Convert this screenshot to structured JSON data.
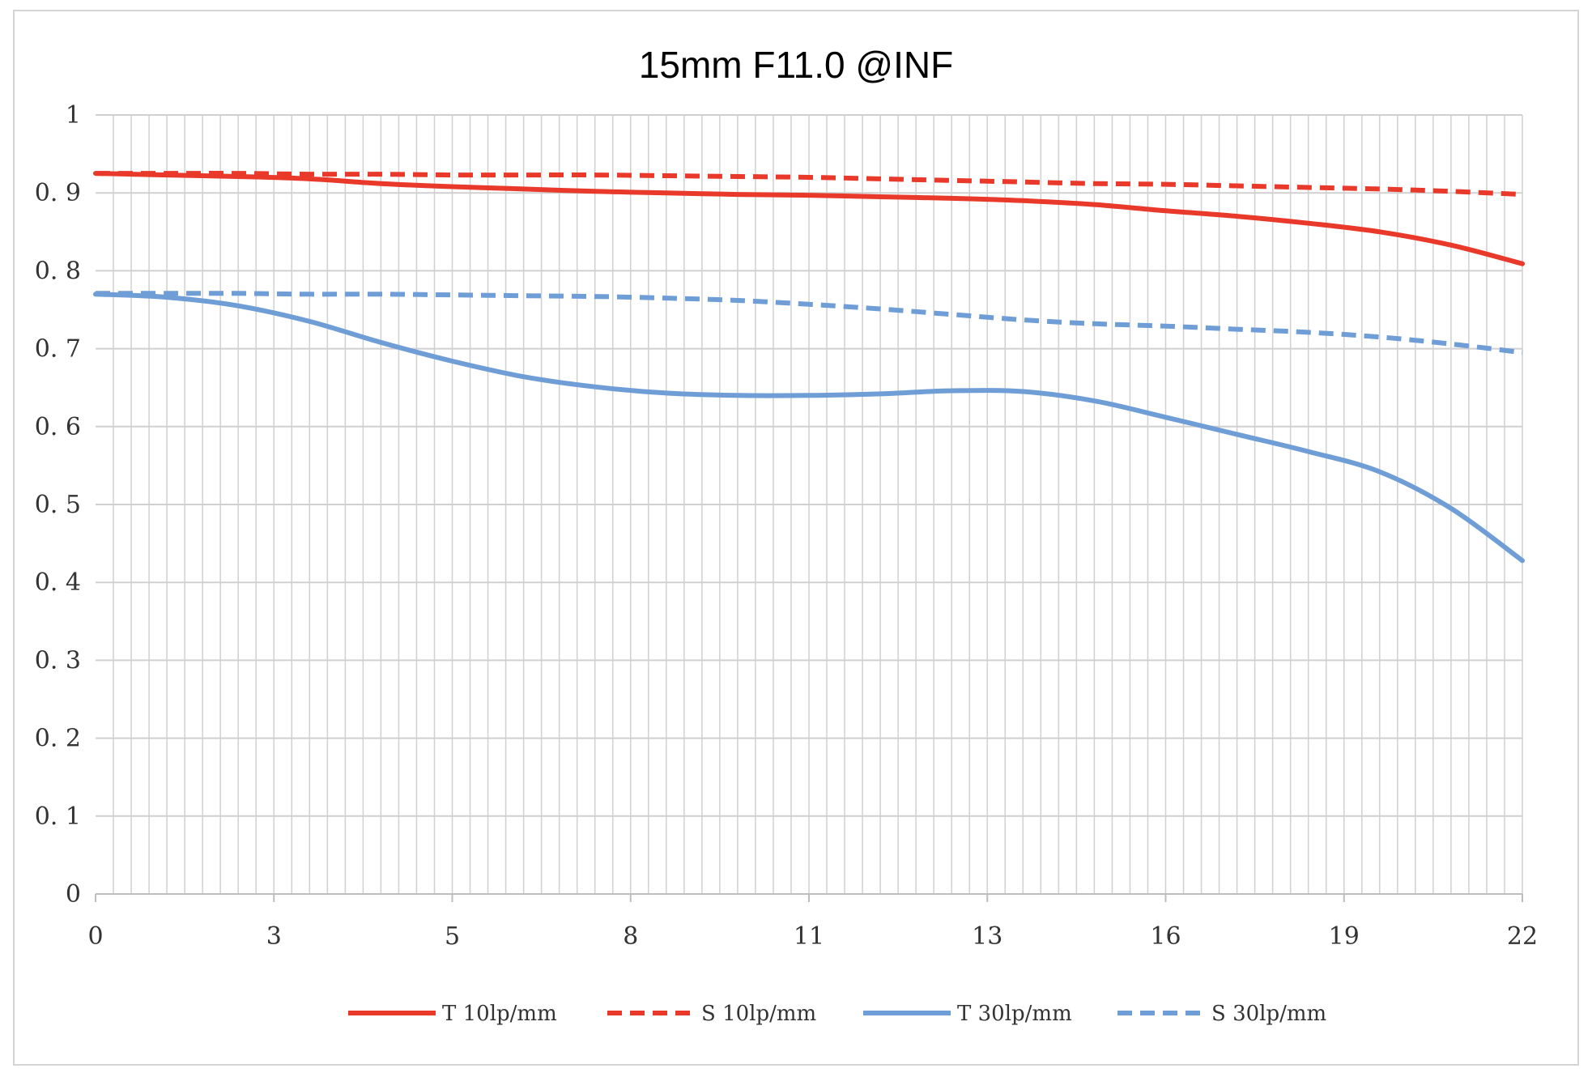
{
  "chart_data": {
    "type": "line",
    "title": "15mm F11.0 @INF",
    "xlabel": "",
    "ylabel": "",
    "xlim": [
      0,
      22
    ],
    "ylim": [
      0,
      1
    ],
    "x_ticks": [
      {
        "value": 0,
        "label": "0"
      },
      {
        "value": 2.75,
        "label": "3"
      },
      {
        "value": 5.5,
        "label": "5"
      },
      {
        "value": 8.25,
        "label": "8"
      },
      {
        "value": 11,
        "label": "11"
      },
      {
        "value": 13.75,
        "label": "13"
      },
      {
        "value": 16.5,
        "label": "16"
      },
      {
        "value": 19.25,
        "label": "19"
      },
      {
        "value": 22,
        "label": "22"
      }
    ],
    "y_ticks": [
      {
        "value": 0,
        "label": "0"
      },
      {
        "value": 0.1,
        "label": "0. 1"
      },
      {
        "value": 0.2,
        "label": "0. 2"
      },
      {
        "value": 0.3,
        "label": "0. 3"
      },
      {
        "value": 0.4,
        "label": "0. 4"
      },
      {
        "value": 0.5,
        "label": "0. 5"
      },
      {
        "value": 0.6,
        "label": "0. 6"
      },
      {
        "value": 0.7,
        "label": "0. 7"
      },
      {
        "value": 0.8,
        "label": "0. 8"
      },
      {
        "value": 0.9,
        "label": "0. 9"
      },
      {
        "value": 1,
        "label": "1"
      }
    ],
    "vertical_grid_count": 80,
    "grid": true,
    "legend_position": "bottom",
    "x": [
      0,
      1.1,
      2.2,
      3.3,
      4.4,
      5.5,
      6.6,
      7.7,
      8.8,
      9.9,
      11,
      12.1,
      13.2,
      14.3,
      15.4,
      16.5,
      17.6,
      18.7,
      19.8,
      20.9,
      22
    ],
    "series": [
      {
        "name": "T 10lp/mm",
        "color": "#e8392b",
        "dash": "solid",
        "values": [
          0.925,
          0.923,
          0.921,
          0.918,
          0.912,
          0.908,
          0.905,
          0.902,
          0.9,
          0.898,
          0.897,
          0.895,
          0.893,
          0.89,
          0.885,
          0.877,
          0.87,
          0.861,
          0.85,
          0.833,
          0.809
        ]
      },
      {
        "name": "S 10lp/mm",
        "color": "#e8392b",
        "dash": "dashed",
        "values": [
          0.925,
          0.925,
          0.925,
          0.924,
          0.924,
          0.923,
          0.923,
          0.923,
          0.922,
          0.921,
          0.92,
          0.918,
          0.916,
          0.914,
          0.912,
          0.911,
          0.909,
          0.907,
          0.905,
          0.902,
          0.898
        ]
      },
      {
        "name": "T 30lp/mm",
        "color": "#6f9dd6",
        "dash": "solid",
        "values": [
          0.77,
          0.766,
          0.755,
          0.735,
          0.708,
          0.684,
          0.664,
          0.651,
          0.643,
          0.64,
          0.64,
          0.642,
          0.646,
          0.645,
          0.633,
          0.612,
          0.59,
          0.568,
          0.542,
          0.495,
          0.428
        ]
      },
      {
        "name": "S 30lp/mm",
        "color": "#6f9dd6",
        "dash": "dashed",
        "values": [
          0.771,
          0.771,
          0.771,
          0.77,
          0.77,
          0.769,
          0.768,
          0.767,
          0.765,
          0.762,
          0.757,
          0.751,
          0.744,
          0.737,
          0.732,
          0.729,
          0.725,
          0.721,
          0.715,
          0.706,
          0.695
        ]
      }
    ]
  }
}
